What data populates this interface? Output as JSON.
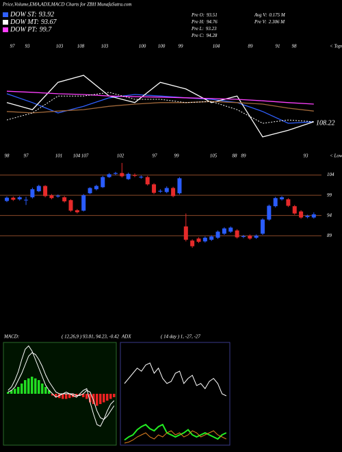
{
  "header": {
    "title": "Price,Volume,EMA,ADX,MACD Charts for ZBH MunafaSutra.com",
    "info": [
      {
        "label": "Pre O:",
        "value": 93.51
      },
      {
        "label": "Pre H:",
        "value": 94.76
      },
      {
        "label": "Pre L:",
        "value": 93.23
      },
      {
        "label": "Pre C:",
        "value": 94.28
      },
      {
        "label": "Avg V:",
        "value": "0.175 M"
      },
      {
        "label": "Pre V:",
        "value": "2.306 M"
      }
    ]
  },
  "chart_data": [
    {
      "type": "line",
      "x": [
        0,
        4,
        8,
        12,
        16,
        20,
        24,
        28,
        32,
        36,
        40,
        44,
        48
      ],
      "xlim": [
        0,
        48
      ],
      "ylim": [
        101,
        127
      ],
      "series": [
        {
          "name": "DOW ST:",
          "legend_value": 93.92,
          "color": "#3060ff",
          "values": [
            115.5,
            113.1,
            110.3,
            112.1,
            114.4,
            115.3,
            114.9,
            114.4,
            114.0,
            113.1,
            110.7,
            107.5,
            107.9
          ]
        },
        {
          "name": "DOW MT:",
          "legend_value": 93.67,
          "color": "#ffffff",
          "values": [
            113.1,
            111.2,
            118.6,
            120.5,
            114.9,
            113.1,
            118.6,
            116.8,
            113.1,
            114.9,
            103.8,
            105.6,
            107.9
          ]
        },
        {
          "name": "DOW PT:",
          "legend_value": 99.7,
          "color": "#ff40ff",
          "values": [
            116.2,
            115.9,
            115.5,
            115.3,
            114.9,
            114.7,
            114.6,
            114.4,
            114.2,
            114.0,
            113.6,
            113.1,
            112.7
          ]
        },
        {
          "color": "#a0683a",
          "values": [
            110.7,
            110.3,
            110.8,
            111.2,
            112.1,
            112.7,
            113.1,
            113.1,
            113.4,
            113.1,
            112.7,
            111.6,
            110.8
          ]
        },
        {
          "color": "#ffffff",
          "dash": true,
          "values": [
            108.4,
            110.3,
            114.9,
            114.9,
            115.9,
            114.0,
            114.0,
            113.1,
            113.4,
            111.2,
            107.5,
            108.4,
            107.9
          ]
        }
      ],
      "tops": [
        97,
        93,
        103,
        108,
        103,
        100,
        100,
        99,
        104,
        89,
        91,
        98
      ],
      "tops_label": "< Tops",
      "lows": [
        98,
        97,
        101,
        104,
        107,
        102,
        97,
        99,
        105,
        88,
        89,
        93
      ],
      "lows_label": "< Lows",
      "last_value": 108.22
    },
    {
      "type": "candlestick",
      "ylim": [
        66,
        108
      ],
      "yticks": [
        89,
        94,
        99,
        104
      ],
      "up_color": "#2a5cff",
      "down_color": "#e52a2a",
      "line_color": "#8b4a2a",
      "open": [
        97.6,
        98.4,
        98.0,
        97.8,
        98.5,
        100.0,
        101.3,
        99.0,
        98.7,
        98.5,
        97.8,
        95.3,
        95.2,
        99.5,
        100.5,
        101.0,
        103.5,
        104.3,
        104.5,
        103.0,
        104.0,
        103.4,
        103.5,
        101.7,
        99.9,
        99.8,
        100.8,
        99.5,
        91.3,
        87.8,
        88.3,
        87.6,
        88.0,
        88.5,
        89.5,
        90.0,
        90.3,
        88.7,
        89.0,
        88.5,
        89.5,
        93.0,
        96.3,
        98.0,
        98.0,
        96.3,
        95.0,
        93.6,
        93.51
      ],
      "high": [
        98.7,
        98.7,
        98.8,
        98.6,
        100.9,
        101.6,
        101.5,
        99.3,
        99.2,
        98.8,
        98.0,
        95.6,
        99.3,
        101.0,
        101.6,
        103.8,
        104.5,
        104.8,
        107.0,
        104.6,
        104.4,
        103.9,
        103.8,
        102.0,
        100.5,
        101.2,
        101.1,
        103.5,
        94.5,
        88.1,
        88.6,
        88.8,
        89.1,
        90.3,
        91.1,
        91.3,
        90.6,
        89.2,
        89.3,
        89.3,
        93.3,
        96.7,
        98.6,
        98.8,
        98.3,
        96.6,
        95.3,
        94.2,
        94.76
      ],
      "low": [
        97.3,
        97.6,
        97.7,
        96.6,
        98.2,
        99.8,
        98.5,
        98.0,
        98.4,
        97.2,
        94.9,
        94.5,
        95.0,
        99.3,
        100.2,
        100.8,
        103.3,
        104.0,
        103.4,
        102.8,
        103.5,
        103.1,
        101.4,
        99.3,
        99.6,
        99.5,
        98.5,
        99.2,
        87.6,
        86.0,
        87.2,
        87.3,
        87.7,
        88.2,
        89.2,
        89.7,
        88.3,
        88.4,
        88.0,
        88.2,
        89.2,
        92.7,
        96.0,
        97.7,
        96.1,
        94.2,
        93.2,
        93.3,
        93.23
      ],
      "close": [
        98.4,
        97.9,
        98.5,
        97.9,
        100.5,
        101.3,
        98.8,
        98.3,
        98.9,
        97.5,
        95.2,
        94.8,
        99.0,
        100.8,
        101.3,
        103.5,
        104.2,
        104.5,
        103.7,
        104.3,
        103.8,
        103.6,
        101.7,
        99.6,
        100.1,
        100.8,
        98.8,
        103.2,
        88.0,
        86.4,
        87.5,
        88.5,
        88.8,
        90.0,
        90.8,
        91.0,
        88.6,
        88.9,
        88.3,
        89.0,
        93.0,
        96.4,
        98.3,
        98.5,
        96.4,
        94.5,
        93.5,
        93.9,
        94.28
      ]
    },
    {
      "type": "macd",
      "title": "MACD:",
      "params": "( 12,26,9 ) 93.81, 94.23, -0.42",
      "ylim": [
        -3,
        3
      ],
      "histogram": [
        0.1,
        0.2,
        0.3,
        0.4,
        0.6,
        0.8,
        0.9,
        1.0,
        0.9,
        0.8,
        0.6,
        0.4,
        0.2,
        -0.1,
        -0.2,
        -0.25,
        -0.3,
        -0.3,
        -0.25,
        -0.2,
        -0.15,
        -0.1,
        -0.2,
        -0.3,
        -0.5,
        -0.6,
        -0.7,
        -0.6,
        -0.5,
        -0.4,
        -0.3,
        -0.2
      ],
      "macd": [
        0.2,
        0.4,
        0.8,
        1.3,
        2.0,
        2.6,
        2.8,
        2.5,
        2.0,
        1.5,
        1.0,
        0.5,
        0.2,
        0,
        -0.2,
        -0.1,
        0,
        0.1,
        0,
        -0.1,
        -0.2,
        0,
        0.2,
        0.3,
        -0.5,
        -1.2,
        -1.8,
        -1.9,
        -1.5,
        -1.0,
        -0.6,
        -0.4
      ],
      "signal": [
        0.1,
        0.2,
        0.4,
        0.8,
        1.2,
        1.7,
        2.2,
        2.4,
        2.3,
        2.0,
        1.6,
        1.1,
        0.7,
        0.4,
        0.1,
        0,
        0,
        0,
        0,
        0,
        -0.1,
        -0.1,
        0,
        0.2,
        0.1,
        -0.4,
        -1.0,
        -1.4,
        -1.5,
        -1.3,
        -1.0,
        -0.7
      ],
      "positive_color": "#22dd22",
      "negative_color": "#ee2222"
    },
    {
      "type": "adx",
      "title": "ADX",
      "params": "( 14 day ) 1, -27, -27",
      "ylim": [
        0,
        100
      ],
      "series": [
        {
          "color": "#ffffff",
          "values": [
            60,
            65,
            70,
            75,
            72,
            78,
            80,
            70,
            75,
            65,
            60,
            62,
            70,
            72,
            60,
            65,
            68,
            58,
            60,
            55,
            62,
            65,
            60,
            50,
            48
          ]
        },
        {
          "color": "#22ee22",
          "values": [
            5,
            8,
            10,
            15,
            18,
            20,
            16,
            14,
            18,
            20,
            12,
            10,
            8,
            10,
            12,
            15,
            10,
            8,
            10,
            12,
            10,
            8,
            6,
            10,
            12
          ]
        },
        {
          "color": "#e08020",
          "values": [
            2,
            3,
            5,
            8,
            10,
            12,
            8,
            6,
            10,
            8,
            12,
            14,
            10,
            12,
            8,
            10,
            14,
            12,
            8,
            10,
            12,
            14,
            10,
            8,
            6
          ]
        }
      ]
    }
  ]
}
